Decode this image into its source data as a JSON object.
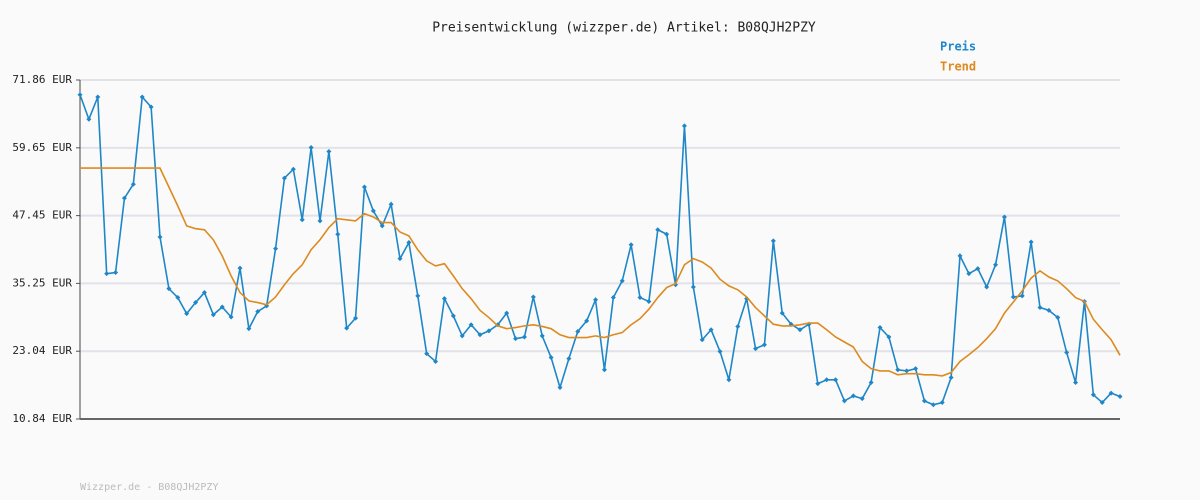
{
  "chart_data": {
    "type": "line",
    "title": "Preisentwicklung (wizzper.de) Artikel: B08QJH2PZY",
    "footer": "Wizzper.de - B08QJH2PZY",
    "ylim": [
      10.84,
      71.86
    ],
    "yticks": [
      {
        "value": 10.84,
        "label": "10.84 EUR"
      },
      {
        "value": 23.04,
        "label": "23.04 EUR"
      },
      {
        "value": 35.25,
        "label": "35.25 EUR"
      },
      {
        "value": 47.45,
        "label": "47.45 EUR"
      },
      {
        "value": 59.65,
        "label": "59.65 EUR"
      },
      {
        "value": 71.86,
        "label": "71.86 EUR"
      }
    ],
    "grid": true,
    "legend": "top-right",
    "series": [
      {
        "name": "Preis",
        "color": "#1f87c7",
        "markers": true,
        "values": [
          69.2,
          64.8,
          68.8,
          37.0,
          37.2,
          50.6,
          53.1,
          68.8,
          67.0,
          43.6,
          34.3,
          32.7,
          29.8,
          31.8,
          33.6,
          29.6,
          31.0,
          29.2,
          38.0,
          27.1,
          30.2,
          31.2,
          41.5,
          54.2,
          55.8,
          46.7,
          59.7,
          46.5,
          59.0,
          44.1,
          27.2,
          29.0,
          52.6,
          48.3,
          45.6,
          49.5,
          39.7,
          42.6,
          33.0,
          22.6,
          21.2,
          32.5,
          29.4,
          25.8,
          27.8,
          26.0,
          26.7,
          27.8,
          29.9,
          25.3,
          25.6,
          32.8,
          25.8,
          21.9,
          16.5,
          21.7,
          26.6,
          28.5,
          32.3,
          19.7,
          32.7,
          35.7,
          42.2,
          32.7,
          32.0,
          44.9,
          44.1,
          35.0,
          63.6,
          34.6,
          25.1,
          26.9,
          23.0,
          17.9,
          27.5,
          32.5,
          23.5,
          24.2,
          42.9,
          29.9,
          27.9,
          26.9,
          27.9,
          17.2,
          17.9,
          17.9,
          14.1,
          15.0,
          14.5,
          17.4,
          27.3,
          25.6,
          19.7,
          19.5,
          19.9,
          14.1,
          13.4,
          13.8,
          18.3,
          40.2,
          37.0,
          37.9,
          34.6,
          38.6,
          47.2,
          32.8,
          33.0,
          42.7,
          30.9,
          30.4,
          29.1,
          22.8,
          17.4,
          32.0,
          15.2,
          13.8,
          15.5,
          14.9
        ]
      },
      {
        "name": "Trend",
        "color": "#dd8a1f",
        "markers": false,
        "values": [
          56.0,
          56.0,
          56.0,
          56.0,
          56.0,
          56.0,
          56.0,
          56.0,
          56.0,
          56.0,
          52.6,
          49.2,
          45.6,
          45.1,
          44.9,
          43.1,
          40.2,
          36.6,
          33.6,
          32.1,
          31.8,
          31.4,
          32.8,
          35.0,
          37.0,
          38.6,
          41.3,
          43.1,
          45.3,
          46.9,
          46.7,
          46.5,
          47.8,
          47.2,
          46.2,
          46.2,
          44.5,
          43.8,
          41.3,
          39.3,
          38.4,
          38.8,
          36.6,
          34.3,
          32.5,
          30.4,
          29.1,
          27.6,
          27.1,
          27.3,
          27.6,
          27.8,
          27.5,
          27.1,
          26.0,
          25.5,
          25.5,
          25.5,
          25.8,
          25.5,
          26.0,
          26.4,
          27.8,
          28.9,
          30.6,
          32.7,
          34.5,
          35.2,
          38.6,
          39.7,
          39.1,
          38.0,
          36.0,
          34.8,
          34.1,
          32.8,
          30.9,
          29.4,
          27.9,
          27.6,
          27.6,
          27.8,
          28.1,
          28.1,
          26.9,
          25.6,
          24.7,
          23.8,
          21.2,
          19.9,
          19.5,
          19.5,
          18.8,
          19.0,
          19.0,
          18.8,
          18.8,
          18.6,
          19.2,
          21.2,
          22.4,
          23.7,
          25.3,
          27.1,
          29.9,
          31.9,
          33.9,
          36.2,
          37.5,
          36.4,
          35.7,
          34.3,
          32.7,
          32.0,
          28.8,
          26.9,
          25.1,
          22.3
        ]
      }
    ]
  }
}
